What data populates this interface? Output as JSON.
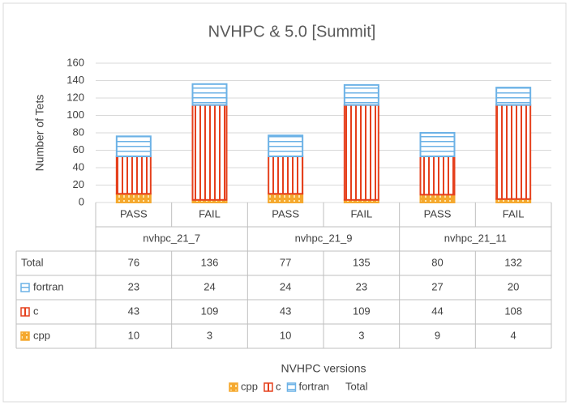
{
  "chart_data": {
    "type": "bar",
    "stacked": true,
    "title": "NVHPC & 5.0 [Summit]",
    "ylabel": "Number of Tets",
    "xlabel": "NVHPC versions",
    "groups": [
      "nvhpc_21_7",
      "nvhpc_21_9",
      "nvhpc_21_11"
    ],
    "categories": [
      "PASS",
      "FAIL",
      "PASS",
      "FAIL",
      "PASS",
      "FAIL"
    ],
    "series": [
      {
        "name": "cpp",
        "color": "#f5a82e",
        "values": [
          10,
          3,
          10,
          3,
          9,
          4
        ]
      },
      {
        "name": "c",
        "color": "#e5401d",
        "values": [
          43,
          109,
          43,
          109,
          44,
          108
        ]
      },
      {
        "name": "fortran",
        "color": "#6cb2e6",
        "values": [
          23,
          24,
          24,
          23,
          27,
          20
        ]
      },
      {
        "name": "Total",
        "values": [
          76,
          136,
          77,
          135,
          80,
          132
        ]
      }
    ],
    "ylim": [
      0,
      160
    ],
    "yticks": [
      0,
      20,
      40,
      60,
      80,
      100,
      120,
      140,
      160
    ],
    "grid": true
  }
}
